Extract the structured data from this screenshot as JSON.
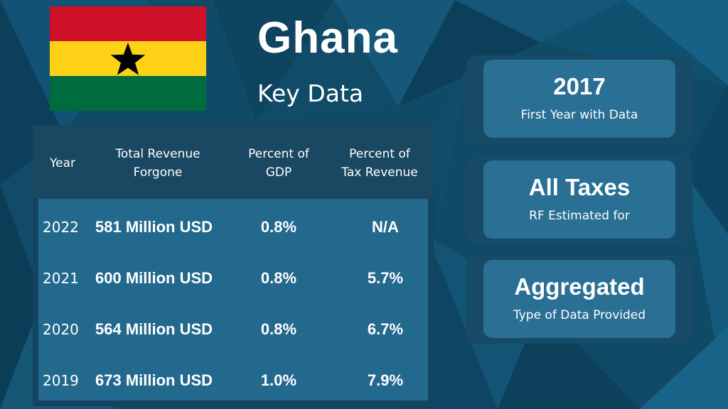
{
  "header": {
    "title": "Ghana",
    "subtitle": "Key Data"
  },
  "flag": {
    "icon": "ghana-flag-icon",
    "colors": {
      "red": "#ce1126",
      "gold": "#fcd116",
      "green": "#006b3f",
      "star": "#000000"
    }
  },
  "table": {
    "columns": [
      "Year",
      "Total Revenue\nForgone",
      "Percent of\nGDP",
      "Percent of\nTax Revenue"
    ],
    "rows": [
      {
        "year": "2022",
        "revenue": "581 Million USD",
        "gdp": "0.8%",
        "tax": "N/A"
      },
      {
        "year": "2021",
        "revenue": "600 Million USD",
        "gdp": "0.8%",
        "tax": "5.7%"
      },
      {
        "year": "2020",
        "revenue": "564 Million USD",
        "gdp": "0.8%",
        "tax": "6.7%"
      },
      {
        "year": "2019",
        "revenue": "673 Million USD",
        "gdp": "1.0%",
        "tax": "7.9%"
      }
    ]
  },
  "cards": [
    {
      "value": "2017",
      "label": "First Year with Data"
    },
    {
      "value": "All Taxes",
      "label": "RF Estimated for"
    },
    {
      "value": "Aggregated",
      "label": "Type of Data Provided"
    }
  ],
  "colors": {
    "background": "#0f4a67",
    "table_body": "#23698e",
    "card_inner": "#2a6f94"
  }
}
